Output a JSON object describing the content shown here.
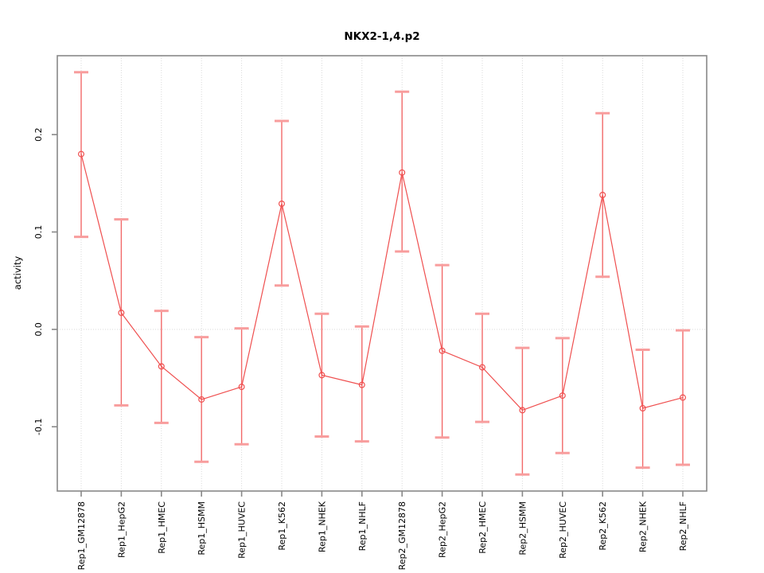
{
  "chart_data": {
    "type": "line",
    "title": "NKX2-1,4.p2",
    "xlabel": "",
    "ylabel": "activity",
    "legend_position": "none",
    "grid": {
      "vertical_dotted_gridlines": true,
      "zero_dotted_line": true
    },
    "ylim": [
      -0.166,
      0.281
    ],
    "yticks": [
      {
        "value": -0.1,
        "label": "-0.1"
      },
      {
        "value": 0.0,
        "label": "0.0"
      },
      {
        "value": 0.1,
        "label": "0.1"
      },
      {
        "value": 0.2,
        "label": "0.2"
      }
    ],
    "categories": [
      "Rep1_GM12878",
      "Rep1_HepG2",
      "Rep1_HMEC",
      "Rep1_HSMM",
      "Rep1_HUVEC",
      "Rep1_K562",
      "Rep1_NHEK",
      "Rep1_NHLF",
      "Rep2_GM12878",
      "Rep2_HepG2",
      "Rep2_HMEC",
      "Rep2_HSMM",
      "Rep2_HUVEC",
      "Rep2_K562",
      "Rep2_NHEK",
      "Rep2_NHLF"
    ],
    "series": [
      {
        "name": "activity",
        "values": [
          0.18,
          0.017,
          -0.038,
          -0.072,
          -0.059,
          0.129,
          -0.047,
          -0.057,
          0.161,
          -0.022,
          -0.039,
          -0.083,
          -0.068,
          0.138,
          -0.081,
          -0.07
        ],
        "error_low": [
          0.095,
          -0.078,
          -0.096,
          -0.136,
          -0.118,
          0.045,
          -0.11,
          -0.115,
          0.08,
          -0.111,
          -0.095,
          -0.149,
          -0.127,
          0.054,
          -0.142,
          -0.139
        ],
        "error_high": [
          0.264,
          0.113,
          0.019,
          -0.008,
          0.001,
          0.214,
          0.016,
          0.003,
          0.244,
          0.066,
          0.016,
          -0.019,
          -0.009,
          0.222,
          -0.021,
          -0.001
        ]
      }
    ],
    "colors": {
      "series_line": "#ef4f4f",
      "error_bar": "#f26a6a",
      "error_cap": "#f89d9d",
      "point_stroke": "#ef4f4f",
      "axis": "#888888",
      "gridline": "#d9d9d9",
      "text": "#000000",
      "background": "#ffffff"
    }
  }
}
